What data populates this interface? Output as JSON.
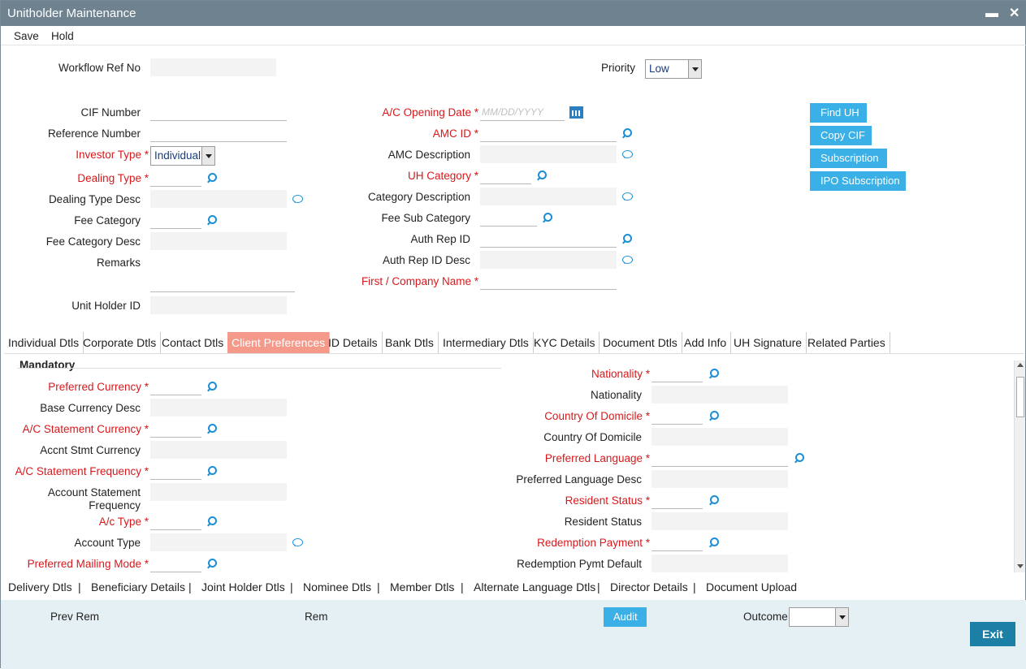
{
  "window": {
    "title": "Unitholder Maintenance",
    "minimize": "▬",
    "close": "✕"
  },
  "menu": {
    "save": "Save",
    "hold": "Hold"
  },
  "top": {
    "workflow_ref_label": "Workflow Ref No",
    "priority_label": "Priority",
    "priority_value": "Low"
  },
  "left": {
    "cif_number": "CIF Number",
    "reference_number": "Reference Number",
    "investor_type": "Investor Type",
    "investor_type_value": "Individual",
    "dealing_type": "Dealing Type",
    "dealing_type_desc": "Dealing Type Desc",
    "fee_category": "Fee Category",
    "fee_category_desc": "Fee Category Desc",
    "remarks": "Remarks",
    "unit_holder_id": "Unit Holder ID"
  },
  "middle": {
    "ac_opening_date": "A/C Opening Date",
    "ac_opening_date_placeholder": "MM/DD/YYYY",
    "amc_id": "AMC ID",
    "amc_description": "AMC Description",
    "uh_category": "UH Category",
    "category_description": "Category Description",
    "fee_sub_category": "Fee Sub Category",
    "auth_rep_id": "Auth Rep ID",
    "auth_rep_id_desc": "Auth Rep ID Desc",
    "first_company_name": "First / Company Name"
  },
  "actions": {
    "find_uh": "Find UH",
    "copy_cif": "Copy CIF",
    "subscription": "Subscription",
    "ipo_subscription": "IPO Subscription"
  },
  "tabs": [
    "Individual Dtls",
    "Corporate Dtls",
    "Contact Dtls",
    "Client Preferences",
    "ID Details",
    "Bank Dtls",
    "Intermediary Dtls",
    "KYC Details",
    "Document Dtls",
    "Add Info",
    "UH Signature",
    "Related Parties"
  ],
  "prefs": {
    "section": "Mandatory",
    "preferred_currency": "Preferred Currency",
    "base_currency_desc": "Base Currency Desc",
    "ac_statement_currency": "A/C Statement Currency",
    "accnt_stmt_currency": "Accnt Stmt Currency",
    "ac_statement_frequency": "A/C Statement Frequency",
    "account_statement_frequency_1": "Account Statement",
    "account_statement_frequency_2": "Frequency",
    "ac_type": "A/c Type",
    "account_type": "Account Type",
    "preferred_mailing_mode": "Preferred Mailing Mode",
    "nationality_req": "Nationality",
    "nationality": "Nationality",
    "country_of_domicile_req": "Country Of Domicile",
    "country_of_domicile": "Country Of Domicile",
    "preferred_language": "Preferred Language",
    "preferred_language_desc": "Preferred Language Desc",
    "resident_status_req": "Resident Status",
    "resident_status": "Resident Status",
    "redemption_payment": "Redemption Payment",
    "redemption_pymt_default": "Redemption Pymt Default"
  },
  "subtabs": [
    "Delivery Dtls",
    "Beneficiary Details",
    "Joint Holder Dtls",
    "Nominee Dtls",
    "Member Dtls",
    "Alternate Language Dtls",
    "Director Details",
    "Document Upload"
  ],
  "subtab_separator": "|",
  "footer": {
    "prev_rem": "Prev Rem",
    "rem": "Rem",
    "audit": "Audit",
    "outcome": "Outcome",
    "exit": "Exit"
  },
  "colors": {
    "title_bar": "#6f8290",
    "required": "#d7191c",
    "button": "#3bb0e6",
    "active_tab": "#f59a8b",
    "exit_button": "#1b7fa6"
  }
}
